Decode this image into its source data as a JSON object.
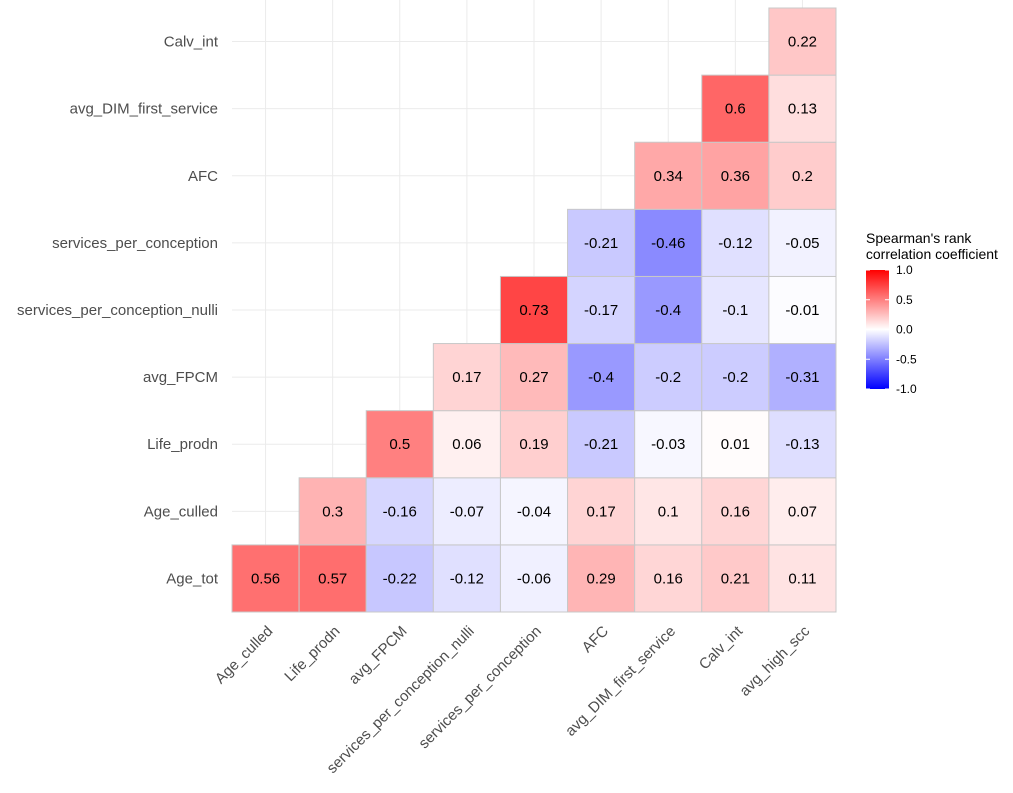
{
  "chart_data": {
    "type": "heatmap",
    "title": "",
    "xlabel": "",
    "ylabel": "",
    "x_categories": [
      "Age_culled",
      "Life_prodn",
      "avg_FPCM",
      "services_per_conception_nulli",
      "services_per_conception",
      "AFC",
      "avg_DIM_first_service",
      "Calv_int",
      "avg_high_scc"
    ],
    "y_categories": [
      "Age_tot",
      "Age_culled",
      "Life_prodn",
      "avg_FPCM",
      "services_per_conception_nulli",
      "services_per_conception",
      "AFC",
      "avg_DIM_first_service",
      "Calv_int"
    ],
    "cells": [
      {
        "x": "Age_culled",
        "y": "Age_tot",
        "value": 0.56,
        "label": "0.56"
      },
      {
        "x": "Life_prodn",
        "y": "Age_tot",
        "value": 0.57,
        "label": "0.57"
      },
      {
        "x": "avg_FPCM",
        "y": "Age_tot",
        "value": -0.22,
        "label": "-0.22"
      },
      {
        "x": "services_per_conception_nulli",
        "y": "Age_tot",
        "value": -0.12,
        "label": "-0.12"
      },
      {
        "x": "services_per_conception",
        "y": "Age_tot",
        "value": -0.06,
        "label": "-0.06"
      },
      {
        "x": "AFC",
        "y": "Age_tot",
        "value": 0.29,
        "label": "0.29"
      },
      {
        "x": "avg_DIM_first_service",
        "y": "Age_tot",
        "value": 0.16,
        "label": "0.16"
      },
      {
        "x": "Calv_int",
        "y": "Age_tot",
        "value": 0.21,
        "label": "0.21"
      },
      {
        "x": "avg_high_scc",
        "y": "Age_tot",
        "value": 0.11,
        "label": "0.11"
      },
      {
        "x": "Life_prodn",
        "y": "Age_culled",
        "value": 0.3,
        "label": "0.3"
      },
      {
        "x": "avg_FPCM",
        "y": "Age_culled",
        "value": -0.16,
        "label": "-0.16"
      },
      {
        "x": "services_per_conception_nulli",
        "y": "Age_culled",
        "value": -0.07,
        "label": "-0.07"
      },
      {
        "x": "services_per_conception",
        "y": "Age_culled",
        "value": -0.04,
        "label": "-0.04"
      },
      {
        "x": "AFC",
        "y": "Age_culled",
        "value": 0.17,
        "label": "0.17"
      },
      {
        "x": "avg_DIM_first_service",
        "y": "Age_culled",
        "value": 0.1,
        "label": "0.1"
      },
      {
        "x": "Calv_int",
        "y": "Age_culled",
        "value": 0.16,
        "label": "0.16"
      },
      {
        "x": "avg_high_scc",
        "y": "Age_culled",
        "value": 0.07,
        "label": "0.07"
      },
      {
        "x": "avg_FPCM",
        "y": "Life_prodn",
        "value": 0.5,
        "label": "0.5"
      },
      {
        "x": "services_per_conception_nulli",
        "y": "Life_prodn",
        "value": 0.06,
        "label": "0.06"
      },
      {
        "x": "services_per_conception",
        "y": "Life_prodn",
        "value": 0.19,
        "label": "0.19"
      },
      {
        "x": "AFC",
        "y": "Life_prodn",
        "value": -0.21,
        "label": "-0.21"
      },
      {
        "x": "avg_DIM_first_service",
        "y": "Life_prodn",
        "value": -0.03,
        "label": "-0.03"
      },
      {
        "x": "Calv_int",
        "y": "Life_prodn",
        "value": 0.01,
        "label": "0.01"
      },
      {
        "x": "avg_high_scc",
        "y": "Life_prodn",
        "value": -0.13,
        "label": "-0.13"
      },
      {
        "x": "services_per_conception_nulli",
        "y": "avg_FPCM",
        "value": 0.17,
        "label": "0.17"
      },
      {
        "x": "services_per_conception",
        "y": "avg_FPCM",
        "value": 0.27,
        "label": "0.27"
      },
      {
        "x": "AFC",
        "y": "avg_FPCM",
        "value": -0.4,
        "label": "-0.4"
      },
      {
        "x": "avg_DIM_first_service",
        "y": "avg_FPCM",
        "value": -0.2,
        "label": "-0.2"
      },
      {
        "x": "Calv_int",
        "y": "avg_FPCM",
        "value": -0.2,
        "label": "-0.2"
      },
      {
        "x": "avg_high_scc",
        "y": "avg_FPCM",
        "value": -0.31,
        "label": "-0.31"
      },
      {
        "x": "services_per_conception",
        "y": "services_per_conception_nulli",
        "value": 0.73,
        "label": "0.73"
      },
      {
        "x": "AFC",
        "y": "services_per_conception_nulli",
        "value": -0.17,
        "label": "-0.17"
      },
      {
        "x": "avg_DIM_first_service",
        "y": "services_per_conception_nulli",
        "value": -0.4,
        "label": "-0.4"
      },
      {
        "x": "Calv_int",
        "y": "services_per_conception_nulli",
        "value": -0.1,
        "label": "-0.1"
      },
      {
        "x": "avg_high_scc",
        "y": "services_per_conception_nulli",
        "value": -0.01,
        "label": "-0.01"
      },
      {
        "x": "AFC",
        "y": "services_per_conception",
        "value": -0.21,
        "label": "-0.21"
      },
      {
        "x": "avg_DIM_first_service",
        "y": "services_per_conception",
        "value": -0.46,
        "label": "-0.46"
      },
      {
        "x": "Calv_int",
        "y": "services_per_conception",
        "value": -0.12,
        "label": "-0.12"
      },
      {
        "x": "avg_high_scc",
        "y": "services_per_conception",
        "value": -0.05,
        "label": "-0.05"
      },
      {
        "x": "avg_DIM_first_service",
        "y": "AFC",
        "value": 0.34,
        "label": "0.34"
      },
      {
        "x": "Calv_int",
        "y": "AFC",
        "value": 0.36,
        "label": "0.36"
      },
      {
        "x": "avg_high_scc",
        "y": "AFC",
        "value": 0.2,
        "label": "0.2"
      },
      {
        "x": "Calv_int",
        "y": "avg_DIM_first_service",
        "value": 0.6,
        "label": "0.6"
      },
      {
        "x": "avg_high_scc",
        "y": "avg_DIM_first_service",
        "value": 0.13,
        "label": "0.13"
      },
      {
        "x": "avg_high_scc",
        "y": "Calv_int",
        "value": 0.22,
        "label": "0.22"
      }
    ],
    "value_range": [
      -1,
      1
    ],
    "grid": true,
    "legend": {
      "title_line1": "Spearman's rank",
      "title_line2": " correlation coefficient",
      "ticks": [
        {
          "value": 1.0,
          "label": "1.0"
        },
        {
          "value": 0.5,
          "label": "0.5"
        },
        {
          "value": 0.0,
          "label": "0.0"
        },
        {
          "value": -0.5,
          "label": "-0.5"
        },
        {
          "value": -1.0,
          "label": "-1.0"
        }
      ],
      "placement": "right"
    },
    "colors": {
      "low": "#0000ff",
      "mid": "#ffffff",
      "high": "#ff0000",
      "cell_border": "#c8c8c8",
      "grid": "#ebebeb",
      "axis_text": "#4d4d4d"
    }
  }
}
